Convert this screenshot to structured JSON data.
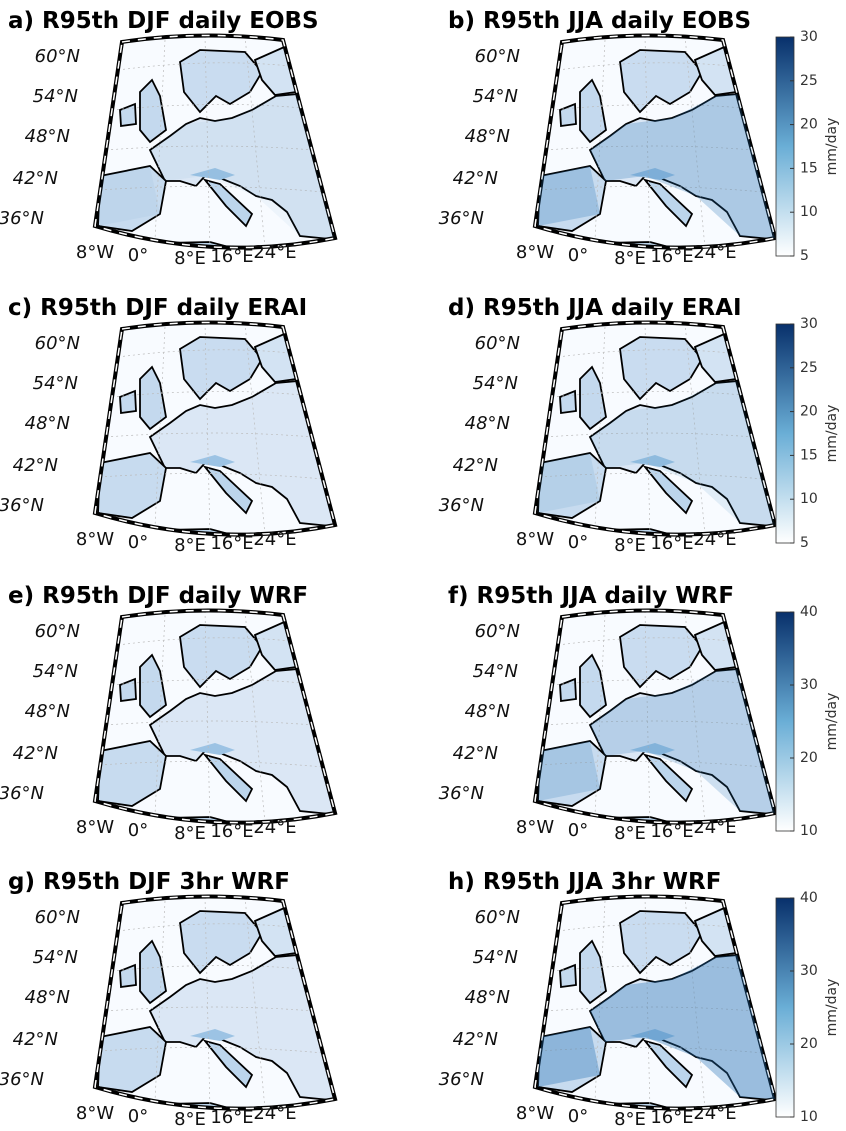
{
  "panels": [
    {
      "title": "a) R95th DJF daily EOBS"
    },
    {
      "title": "b) R95th JJA daily EOBS"
    },
    {
      "title": "c) R95th DJF daily ERAI"
    },
    {
      "title": "d) R95th JJA daily ERAI"
    },
    {
      "title": "e) R95th DJF daily WRF"
    },
    {
      "title": "f) R95th JJA daily WRF"
    },
    {
      "title": "g) R95th DJF 3hr WRF"
    },
    {
      "title": "h) R95th JJA 3hr WRF"
    }
  ],
  "map_axes": {
    "lat_labels": [
      "60°N",
      "54°N",
      "48°N",
      "42°N",
      "36°N"
    ],
    "lon_labels": [
      "8°W",
      "0°",
      "8°E",
      "16°E",
      "24°E"
    ]
  },
  "colorbars": [
    {
      "label": "mm/day",
      "ylim": [
        5,
        30
      ],
      "yticks": [
        5,
        10,
        15,
        20,
        25,
        30
      ]
    },
    {
      "label": "mm/day",
      "ylim": [
        5,
        30
      ],
      "yticks": [
        5,
        10,
        15,
        20,
        25,
        30
      ]
    },
    {
      "label": "mm/day",
      "ylim": [
        10,
        40
      ],
      "yticks": [
        10,
        20,
        30,
        40
      ]
    },
    {
      "label": "mm/day",
      "ylim": [
        10,
        40
      ],
      "yticks": [
        10,
        20,
        30,
        40
      ]
    }
  ]
}
